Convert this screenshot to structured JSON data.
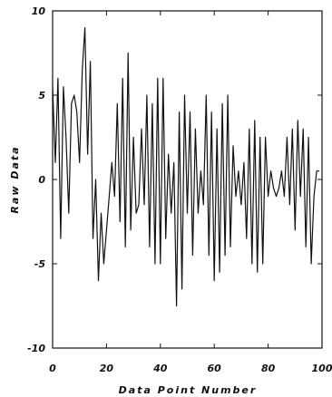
{
  "chart_data": {
    "type": "line",
    "xlabel": "Data Point Number",
    "ylabel": "Raw Data",
    "xlim": [
      0,
      100
    ],
    "ylim": [
      -10,
      10
    ],
    "xticks": [
      0,
      20,
      40,
      60,
      80,
      100
    ],
    "yticks": [
      -10,
      -5,
      0,
      5,
      10
    ],
    "xtick_labels": [
      "0",
      "20",
      "40",
      "60",
      "80",
      "100"
    ],
    "ytick_labels": [
      "-10",
      "-5",
      "0",
      "5",
      "10"
    ],
    "grid": false,
    "series": [
      {
        "color": "#111111",
        "x": [
          0,
          1,
          2,
          3,
          4,
          5,
          6,
          7,
          8,
          9,
          10,
          11,
          12,
          13,
          14,
          15,
          16,
          17,
          18,
          19,
          20,
          21,
          22,
          23,
          24,
          25,
          26,
          27,
          28,
          29,
          30,
          31,
          32,
          33,
          34,
          35,
          36,
          37,
          38,
          39,
          40,
          41,
          42,
          43,
          44,
          45,
          46,
          47,
          48,
          49,
          50,
          51,
          52,
          53,
          54,
          55,
          56,
          57,
          58,
          59,
          60,
          61,
          62,
          63,
          64,
          65,
          66,
          67,
          68,
          69,
          70,
          71,
          72,
          73,
          74,
          75,
          76,
          77,
          78,
          79,
          80,
          81,
          82,
          83,
          84,
          85,
          86,
          87,
          88,
          89,
          90,
          91,
          92,
          93,
          94,
          95,
          96,
          97,
          98,
          99
        ],
        "values": [
          5.5,
          1.0,
          6.0,
          -3.5,
          5.5,
          2.5,
          -2.0,
          4.5,
          5.0,
          4.0,
          1.0,
          6.5,
          9.0,
          1.5,
          7.0,
          -3.5,
          0.0,
          -6.0,
          -2.0,
          -5.0,
          -3.0,
          -1.0,
          1.0,
          -1.0,
          4.5,
          -2.5,
          6.0,
          -4.0,
          7.5,
          -3.0,
          2.5,
          -2.0,
          -1.5,
          3.0,
          -1.5,
          5.0,
          -4.0,
          4.5,
          -5.0,
          6.0,
          -5.0,
          6.0,
          -3.5,
          1.5,
          -2.0,
          1.0,
          -7.5,
          4.0,
          -6.5,
          5.0,
          -2.0,
          4.0,
          -4.5,
          3.0,
          -2.0,
          0.5,
          -1.5,
          5.0,
          -4.5,
          4.0,
          -6.0,
          3.0,
          -5.5,
          4.5,
          -4.5,
          5.0,
          -4.0,
          2.0,
          -1.0,
          0.5,
          -1.5,
          1.0,
          -3.5,
          3.0,
          -5.0,
          3.5,
          -5.5,
          2.5,
          -5.0,
          2.5,
          -1.0,
          0.5,
          -0.5,
          -1.0,
          -0.5,
          0.5,
          -1.0,
          2.5,
          -1.5,
          3.0,
          -3.0,
          3.5,
          -1.0,
          3.0,
          -4.0,
          2.5,
          -5.0,
          -1.0,
          0.5,
          0.5
        ]
      }
    ]
  }
}
